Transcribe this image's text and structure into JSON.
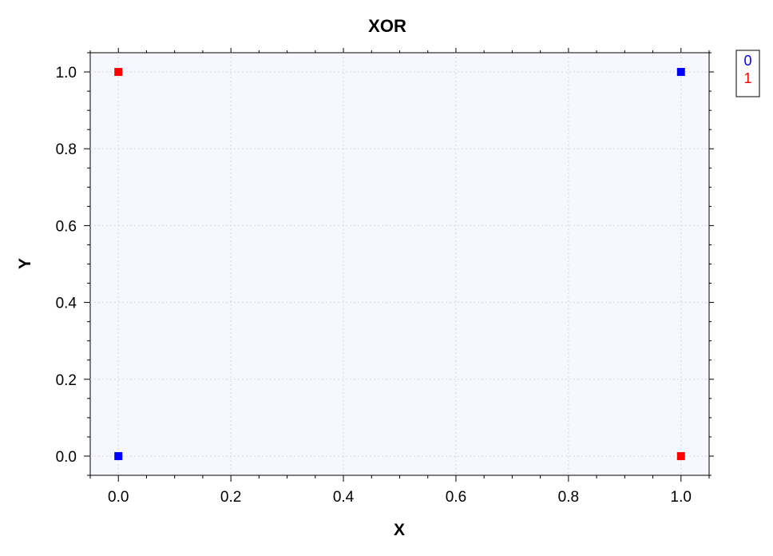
{
  "chart_data": {
    "type": "scatter",
    "title": "XOR",
    "xlabel": "X",
    "ylabel": "Y",
    "xlim": [
      -0.05,
      1.05
    ],
    "ylim": [
      -0.05,
      1.05
    ],
    "xticks": [
      "0.0",
      "0.2",
      "0.4",
      "0.6",
      "0.8",
      "1.0"
    ],
    "yticks": [
      "0.0",
      "0.2",
      "0.4",
      "0.6",
      "0.8",
      "1.0"
    ],
    "grid": true,
    "legend_position": "outside-top-right",
    "plot_background": "#f7f8ff",
    "series": [
      {
        "name": "0",
        "color": "#0000ff",
        "marker": "square",
        "points": [
          [
            0,
            0
          ],
          [
            1,
            1
          ]
        ]
      },
      {
        "name": "1",
        "color": "#ff0000",
        "marker": "square",
        "points": [
          [
            0,
            1
          ],
          [
            1,
            0
          ]
        ]
      }
    ]
  }
}
